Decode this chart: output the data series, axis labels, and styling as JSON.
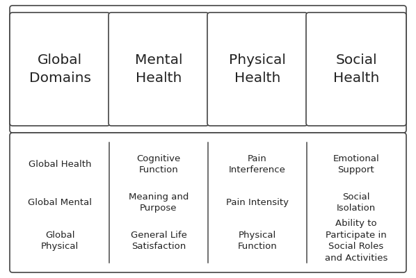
{
  "headers": [
    "Global\nDomains",
    "Mental\nHealth",
    "Physical\nHealth",
    "Social\nHealth"
  ],
  "items": [
    [
      "Global Health",
      "Global Mental",
      "Global\nPhysical"
    ],
    [
      "Cognitive\nFunction",
      "Meaning and\nPurpose",
      "General Life\nSatisfaction"
    ],
    [
      "Pain\nInterference",
      "Pain Intensity",
      "Physical\nFunction"
    ],
    [
      "Emotional\nSupport",
      "Social\nIsolation",
      "Ability to\nParticipate in\nSocial Roles\nand Activities"
    ]
  ],
  "bg_color": "#ffffff",
  "box_edge_color": "#444444",
  "text_color": "#222222",
  "header_fontsize": 14.5,
  "item_fontsize": 9.5,
  "fig_width": 5.98,
  "fig_height": 4.0,
  "dpi": 100
}
